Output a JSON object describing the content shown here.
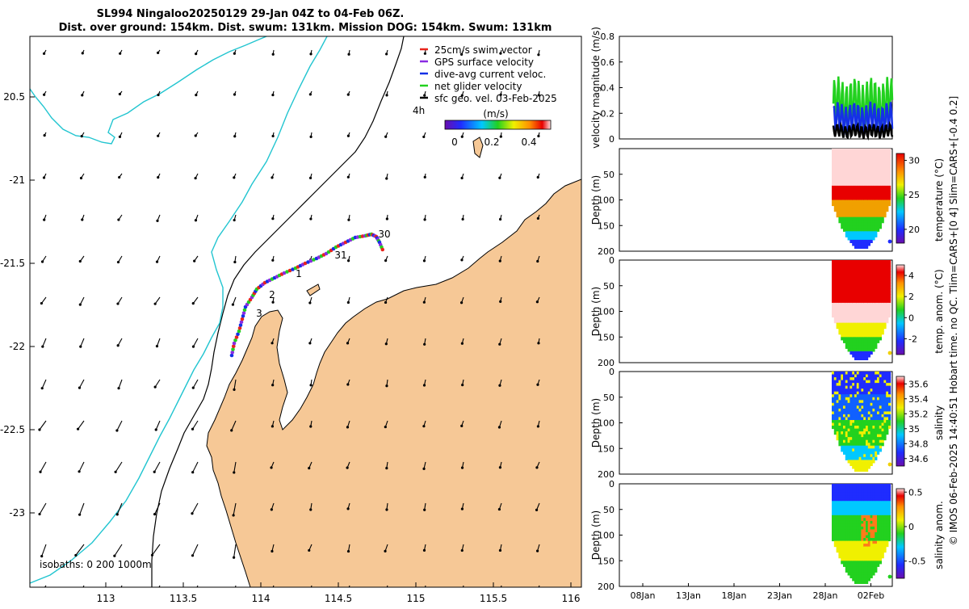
{
  "title_line1": "SL994 Ningaloo20250129 29-Jan 04Z to 04-Feb 06Z.",
  "title_line2": "Dist. over ground: 154km. Dist. swum: 131km. Mission DOG: 154km. Swum: 131km",
  "side_credit": "© IMOS 06-Feb-2025 14:40:51 Hobart time. no QC. Tlim=CARS+[0 4] Slim=CARS+[-0.4 0.2]",
  "colors": {
    "land": "#f6c896",
    "coast": "#000000",
    "isobath200": "#000000",
    "isobath1000": "#22c5d0"
  },
  "map": {
    "lon_ticks": [
      "113",
      "113.5",
      "114",
      "114.5",
      "115",
      "115.5",
      "116"
    ],
    "lat_ticks": [
      "20.5",
      "-21",
      "-21.5",
      "-22",
      "-22.5",
      "-23"
    ],
    "isobaths_label": "isobaths: 0   200  1000m",
    "legend": [
      {
        "label": "25cm/s swim vector",
        "color": "#e8251c"
      },
      {
        "label": "GPS surface velocity",
        "color": "#8a2be2"
      },
      {
        "label": "dive-avg current veloc.",
        "color": "#1530e6"
      },
      {
        "label": "net glider velocity",
        "color": "#22d11f"
      },
      {
        "label": "sfc geo. vel. 03-Feb-2025",
        "color": "#000000"
      }
    ],
    "interval_label": "4h",
    "colorbar_title": "(m/s)",
    "colorbar_ticks": [
      "0",
      "0.2",
      "0.4"
    ],
    "day_labels": [
      "30",
      "31",
      "1",
      "2",
      "3"
    ]
  },
  "chart_data": [
    {
      "type": "line",
      "title": "",
      "xlabel": "",
      "ylabel": "velocity magnitude (m/s)",
      "ylim": [
        0,
        0.8
      ],
      "yticks": [
        "0",
        "0.2",
        "0.4",
        "0.6",
        "0.8"
      ],
      "series": [
        {
          "name": "net glider velocity",
          "color": "#22d11f",
          "range": [
            0.05,
            0.5
          ]
        },
        {
          "name": "dive-avg current veloc.",
          "color": "#1530e6",
          "range": [
            0.02,
            0.3
          ]
        },
        {
          "name": "sfc geo. vel.",
          "color": "#000000",
          "range": [
            0.0,
            0.12
          ]
        }
      ]
    },
    {
      "type": "heatmap",
      "ylabel": "Depth (m)",
      "cbar_label": "temperature (°C)",
      "ylim": [
        0,
        200
      ],
      "yticks": [
        "50",
        "100",
        "150",
        "200"
      ],
      "cbar_ticks": [
        "30",
        "25",
        "20"
      ],
      "cbar_range": [
        18,
        31
      ]
    },
    {
      "type": "heatmap",
      "ylabel": "Depth (m)",
      "cbar_label": "temp. anom. (°C)",
      "ylim": [
        0,
        200
      ],
      "yticks": [
        "0",
        "50",
        "100",
        "150",
        "200"
      ],
      "cbar_ticks": [
        "4",
        "2",
        "0",
        "-2"
      ],
      "cbar_range": [
        -3.5,
        5
      ]
    },
    {
      "type": "heatmap",
      "ylabel": "Depth (m)",
      "cbar_label": "salinity",
      "ylim": [
        0,
        200
      ],
      "yticks": [
        "0",
        "50",
        "100",
        "150",
        "200"
      ],
      "cbar_ticks": [
        "35.6",
        "35.4",
        "35.2",
        "35",
        "34.8",
        "34.6"
      ],
      "cbar_range": [
        34.5,
        35.7
      ]
    },
    {
      "type": "heatmap",
      "ylabel": "Depth (m)",
      "cbar_label": "salinity anom.",
      "ylim": [
        0,
        200
      ],
      "yticks": [
        "0",
        "50",
        "100",
        "150",
        "200"
      ],
      "cbar_ticks": [
        "0.5",
        "0",
        "-0.5"
      ],
      "cbar_range": [
        -0.75,
        0.55
      ],
      "xticks": [
        "08Jan",
        "13Jan",
        "18Jan",
        "23Jan",
        "28Jan",
        "02Feb"
      ]
    }
  ]
}
